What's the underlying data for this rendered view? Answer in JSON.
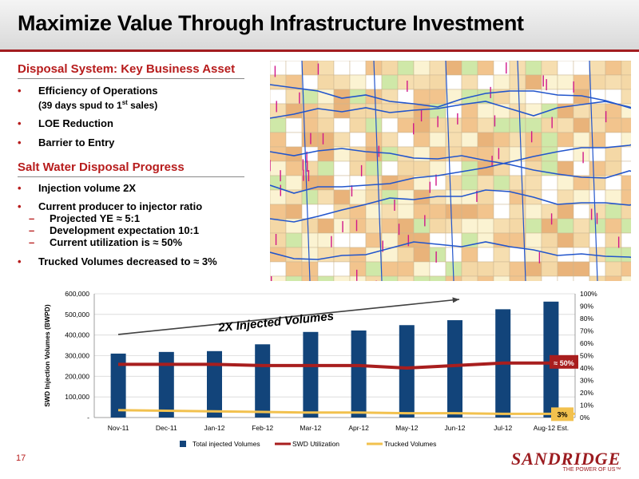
{
  "page": {
    "title": "Maximize Value Through Infrastructure Investment",
    "number": "17"
  },
  "section1": {
    "heading": "Disposal System: Key Business Asset",
    "bullets": [
      {
        "text": "Efficiency of Operations",
        "sub": "(39 days spud to 1st sales)"
      },
      {
        "text": "LOE Reduction"
      },
      {
        "text": "Barrier to Entry"
      }
    ]
  },
  "section2": {
    "heading": "Salt Water Disposal Progress",
    "bullets": [
      {
        "text": "Injection volume 2X"
      },
      {
        "text": "Current producer to injector ratio"
      },
      {
        "text": "Trucked Volumes decreased to ≈ 3%"
      }
    ],
    "sub_bullets": [
      "Projected YE ≈ 5:1",
      "Development expectation 10:1",
      "Current utilization is ≈ 50%"
    ]
  },
  "logo": {
    "name": "SandRidge",
    "tagline": "THE POWER OF US"
  },
  "colors": {
    "accent": "#b71c1c",
    "bar": "#12447a",
    "utilization_line": "#a81e1e",
    "trucked_line": "#f2c14e"
  },
  "chart_data": {
    "type": "bar",
    "categories": [
      "Nov-11",
      "Dec-11",
      "Jan-12",
      "Feb-12",
      "Mar-12",
      "Apr-12",
      "May-12",
      "Jun-12",
      "Jul-12",
      "Aug-12 Est."
    ],
    "ylabel": "SWD Injection Volumes (BWPD)",
    "ylim": [
      0,
      600000
    ],
    "y_ticks": [
      "-",
      "100,000",
      "200,000",
      "300,000",
      "400,000",
      "500,000",
      "600,000"
    ],
    "y2lim": [
      0,
      100
    ],
    "y2_ticks": [
      "0%",
      "10%",
      "20%",
      "30%",
      "40%",
      "50%",
      "60%",
      "70%",
      "80%",
      "90%",
      "100%"
    ],
    "series": [
      {
        "name": "Total injected Volumes",
        "kind": "bar",
        "axis": "left",
        "values": [
          310000,
          318000,
          322000,
          355000,
          415000,
          422000,
          448000,
          472000,
          525000,
          562000
        ]
      },
      {
        "name": "SWD Utilization",
        "kind": "line",
        "axis": "right",
        "values": [
          43,
          43,
          43,
          42,
          42,
          42,
          40,
          42,
          44,
          44
        ]
      },
      {
        "name": "Trucked Volumes",
        "kind": "line",
        "axis": "right",
        "values": [
          6,
          5.5,
          5,
          4.5,
          4,
          4,
          3.5,
          3.5,
          3,
          3
        ]
      }
    ],
    "annotations": {
      "arrow_label": "2X Injected Volumes",
      "utilization_callout": "≈ 50%",
      "trucked_callout": "3%"
    },
    "legend_position": "bottom"
  }
}
